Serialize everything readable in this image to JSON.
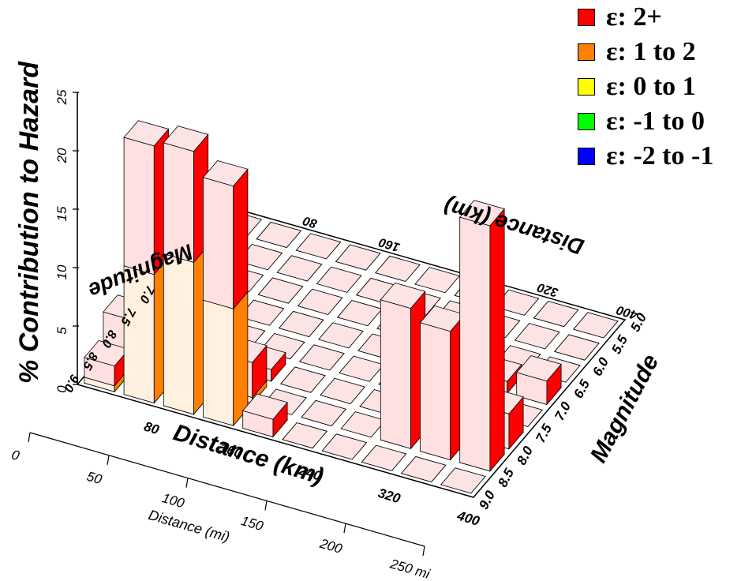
{
  "chart_data": {
    "type": "bar3d",
    "title": "",
    "zlabel": "% Contribution to Hazard",
    "xlabel": "Distance (km)",
    "ylabel": "Magnitude",
    "xlabel_back": "Distance (km)",
    "ylabel_back": "Magnitude",
    "z_ticks": [
      "0",
      "5",
      "10",
      "15",
      "20",
      "25"
    ],
    "zlim": [
      0,
      25
    ],
    "x_ticks": [
      "80",
      "160",
      "240",
      "320",
      "400"
    ],
    "x_ticks_back": [
      "80",
      "160",
      "320",
      "400"
    ],
    "y_ticks": [
      "5.0",
      "5.5",
      "6.0",
      "6.5",
      "7.0",
      "7.5",
      "8.0",
      "8.5",
      "9.0"
    ],
    "y_ticks_back": [
      "7.0",
      "7.5",
      "8.0",
      "8.5",
      "9.0"
    ],
    "mi_axis": {
      "label": "Distance (mi)",
      "ticks": [
        "0",
        "50",
        "100",
        "150",
        "200",
        "250 mi"
      ]
    },
    "legend": [
      {
        "label": "ε:  2+",
        "color": "#ff0000"
      },
      {
        "label": "ε:  1 to  2",
        "color": "#ff8000"
      },
      {
        "label": "ε:  0 to  1",
        "color": "#ffff00"
      },
      {
        "label": "ε: -1 to  0",
        "color": "#00ff00"
      },
      {
        "label": "ε: -2 to -1",
        "color": "#0000ff"
      }
    ],
    "bars": [
      {
        "distance": 20,
        "magnitude": 8.75,
        "total": 2.2,
        "eps": [
          0,
          0,
          0,
          0.5,
          1.7
        ]
      },
      {
        "distance": 20,
        "magnitude": 8.25,
        "total": 4.2,
        "eps": [
          0,
          0,
          0,
          1.0,
          3.2
        ]
      },
      {
        "distance": 20,
        "magnitude": 7.75,
        "total": 3.2,
        "eps": [
          0,
          0,
          0,
          1.6,
          1.6
        ]
      },
      {
        "distance": 20,
        "magnitude": 7.25,
        "total": 0.4,
        "eps": [
          0,
          0,
          0,
          0.2,
          0.2
        ]
      },
      {
        "distance": 20,
        "magnitude": 6.75,
        "total": 0.2,
        "eps": [
          0,
          0,
          0,
          0,
          0.2
        ]
      },
      {
        "distance": 60,
        "magnitude": 8.75,
        "total": 22.0,
        "eps": [
          0,
          0,
          0,
          11.0,
          11.0
        ]
      },
      {
        "distance": 60,
        "magnitude": 8.25,
        "total": 7.5,
        "eps": [
          0,
          0,
          0,
          3.5,
          4.0
        ]
      },
      {
        "distance": 60,
        "magnitude": 7.75,
        "total": 3.2,
        "eps": [
          0,
          0,
          0,
          1.0,
          2.2
        ]
      },
      {
        "distance": 60,
        "magnitude": 7.25,
        "total": 0.5,
        "eps": [
          0,
          0,
          0,
          0.2,
          0.3
        ]
      },
      {
        "distance": 100,
        "magnitude": 8.75,
        "total": 22.5,
        "eps": [
          0,
          0,
          0,
          13.0,
          9.5
        ]
      },
      {
        "distance": 100,
        "magnitude": 8.25,
        "total": 5.5,
        "eps": [
          0,
          0,
          0,
          2.5,
          3.0
        ]
      },
      {
        "distance": 100,
        "magnitude": 7.75,
        "total": 2.0,
        "eps": [
          0,
          0,
          0,
          0.5,
          1.5
        ]
      },
      {
        "distance": 140,
        "magnitude": 8.75,
        "total": 20.5,
        "eps": [
          0,
          0,
          0,
          10.0,
          10.5
        ]
      },
      {
        "distance": 140,
        "magnitude": 8.25,
        "total": 3.5,
        "eps": [
          0,
          0,
          0,
          0.5,
          3.0
        ]
      },
      {
        "distance": 140,
        "magnitude": 7.75,
        "total": 1.0,
        "eps": [
          0,
          0,
          0,
          0,
          1.0
        ]
      },
      {
        "distance": 180,
        "magnitude": 8.75,
        "total": 1.5,
        "eps": [
          0,
          0,
          0,
          0,
          1.5
        ]
      },
      {
        "distance": 300,
        "magnitude": 8.25,
        "total": 12.0,
        "eps": [
          0,
          0,
          0,
          0,
          12.0
        ]
      },
      {
        "distance": 300,
        "magnitude": 7.75,
        "total": 4.0,
        "eps": [
          0,
          0,
          0,
          0,
          4.0
        ]
      },
      {
        "distance": 300,
        "magnitude": 7.25,
        "total": 3.5,
        "eps": [
          0,
          0,
          0,
          0,
          3.5
        ]
      },
      {
        "distance": 300,
        "magnitude": 6.75,
        "total": 1.0,
        "eps": [
          0,
          0,
          0,
          0,
          1.0
        ]
      },
      {
        "distance": 340,
        "magnitude": 8.25,
        "total": 11.0,
        "eps": [
          0,
          0,
          0,
          0,
          11.0
        ]
      },
      {
        "distance": 340,
        "magnitude": 7.75,
        "total": 5.0,
        "eps": [
          0,
          0,
          0,
          0,
          5.0
        ]
      },
      {
        "distance": 340,
        "magnitude": 7.25,
        "total": 3.0,
        "eps": [
          0,
          0,
          0,
          0,
          3.0
        ]
      },
      {
        "distance": 340,
        "magnitude": 6.75,
        "total": 1.0,
        "eps": [
          0,
          0,
          0,
          0,
          1.0
        ]
      },
      {
        "distance": 380,
        "magnitude": 8.25,
        "total": 21.0,
        "eps": [
          0,
          0,
          0,
          0,
          21.0
        ]
      },
      {
        "distance": 380,
        "magnitude": 7.75,
        "total": 3.0,
        "eps": [
          0,
          0,
          0,
          0,
          3.0
        ]
      },
      {
        "distance": 380,
        "magnitude": 6.75,
        "total": 2.0,
        "eps": [
          0,
          0,
          0,
          0,
          2.0
        ]
      }
    ]
  }
}
